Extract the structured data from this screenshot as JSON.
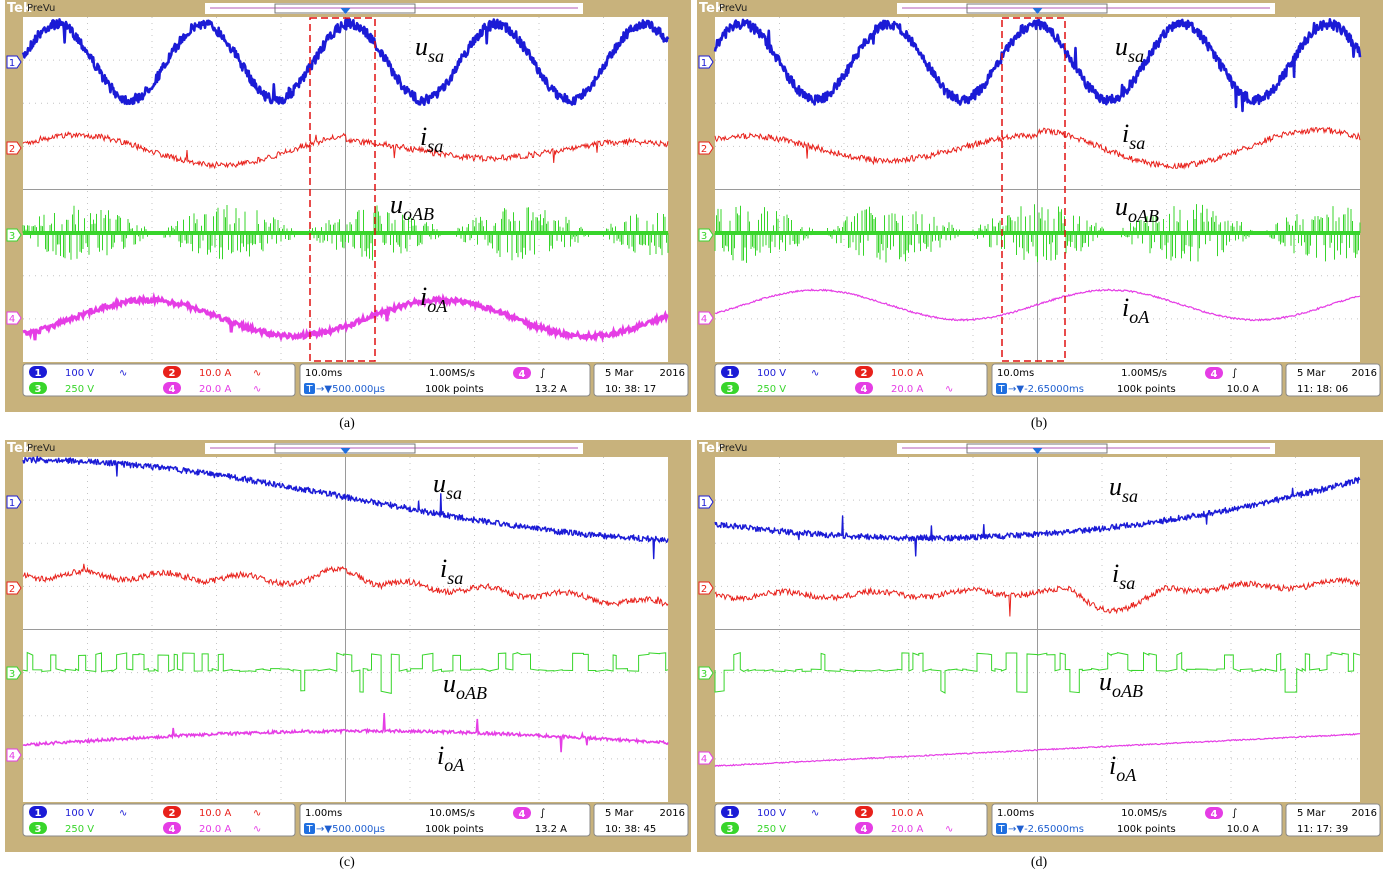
{
  "figure": {
    "panels": [
      {
        "caption": "(a)",
        "logo": "Tek",
        "mode": "PreVu",
        "channel_markers": [
          "1",
          "2",
          "3",
          "4"
        ],
        "trace_labels": [
          {
            "symbol": "u",
            "subscript": "sa"
          },
          {
            "symbol": "i",
            "subscript": "sa"
          },
          {
            "symbol": "u",
            "subscript": "oAB"
          },
          {
            "symbol": "i",
            "subscript": "oA"
          }
        ],
        "status": {
          "ch1": {
            "badge": "1",
            "scale": "100 V",
            "coupling": "∿"
          },
          "ch2": {
            "badge": "2",
            "scale": "10.0 A",
            "coupling": "∿"
          },
          "ch3": {
            "badge": "3",
            "scale": "250 V"
          },
          "ch4": {
            "badge": "4",
            "scale": "20.0 A",
            "coupling": "∿"
          },
          "timebase": "10.0ms",
          "sample_rate": "1.00MS/s",
          "trigger_icon": "T",
          "position": "→▼500.000µs",
          "record": "100k points",
          "trigger_channel": "4",
          "trigger_slope": "∫",
          "trigger_level": "13.2 A",
          "date": "5 Mar",
          "year": "2016",
          "time": "10: 38: 17"
        }
      },
      {
        "caption": "(b)",
        "logo": "Tek",
        "mode": "PreVu",
        "channel_markers": [
          "1",
          "2",
          "3",
          "4"
        ],
        "trace_labels": [
          {
            "symbol": "u",
            "subscript": "sa"
          },
          {
            "symbol": "i",
            "subscript": "sa"
          },
          {
            "symbol": "u",
            "subscript": "oAB"
          },
          {
            "symbol": "i",
            "subscript": "oA"
          }
        ],
        "status": {
          "ch1": {
            "badge": "1",
            "scale": "100 V",
            "coupling": "∿"
          },
          "ch2": {
            "badge": "2",
            "scale": "10.0 A"
          },
          "ch3": {
            "badge": "3",
            "scale": "250 V"
          },
          "ch4": {
            "badge": "4",
            "scale": "20.0 A",
            "coupling": "∿"
          },
          "timebase": "10.0ms",
          "sample_rate": "1.00MS/s",
          "trigger_icon": "T",
          "position": "→▼-2.65000ms",
          "record": "100k points",
          "trigger_channel": "4",
          "trigger_slope": "∫",
          "trigger_level": "10.0 A",
          "date": "5 Mar",
          "year": "2016",
          "time": "11: 18: 06"
        }
      },
      {
        "caption": "(c)",
        "logo": "Tek",
        "mode": "PreVu",
        "channel_markers": [
          "1",
          "2",
          "3",
          "4"
        ],
        "trace_labels": [
          {
            "symbol": "u",
            "subscript": "sa"
          },
          {
            "symbol": "i",
            "subscript": "sa"
          },
          {
            "symbol": "u",
            "subscript": "oAB"
          },
          {
            "symbol": "i",
            "subscript": "oA"
          }
        ],
        "status": {
          "ch1": {
            "badge": "1",
            "scale": "100 V",
            "coupling": "∿"
          },
          "ch2": {
            "badge": "2",
            "scale": "10.0 A",
            "coupling": "∿"
          },
          "ch3": {
            "badge": "3",
            "scale": "250 V"
          },
          "ch4": {
            "badge": "4",
            "scale": "20.0 A",
            "coupling": "∿"
          },
          "timebase": "1.00ms",
          "sample_rate": "10.0MS/s",
          "trigger_icon": "T",
          "position": "→▼500.000µs",
          "record": "100k points",
          "trigger_channel": "4",
          "trigger_slope": "∫",
          "trigger_level": "13.2 A",
          "date": "5 Mar",
          "year": "2016",
          "time": "10: 38: 45"
        }
      },
      {
        "caption": "(d)",
        "logo": "Tek",
        "mode": "PreVu",
        "channel_markers": [
          "1",
          "2",
          "3",
          "4"
        ],
        "trace_labels": [
          {
            "symbol": "u",
            "subscript": "sa"
          },
          {
            "symbol": "i",
            "subscript": "sa"
          },
          {
            "symbol": "u",
            "subscript": "oAB"
          },
          {
            "symbol": "i",
            "subscript": "oA"
          }
        ],
        "status": {
          "ch1": {
            "badge": "1",
            "scale": "100 V",
            "coupling": "∿"
          },
          "ch2": {
            "badge": "2",
            "scale": "10.0 A"
          },
          "ch3": {
            "badge": "3",
            "scale": "250 V"
          },
          "ch4": {
            "badge": "4",
            "scale": "20.0 A",
            "coupling": "∿"
          },
          "timebase": "1.00ms",
          "sample_rate": "10.0MS/s",
          "trigger_icon": "T",
          "position": "→▼-2.65000ms",
          "record": "100k points",
          "trigger_channel": "4",
          "trigger_slope": "∫",
          "trigger_level": "10.0 A",
          "date": "5 Mar",
          "year": "2016",
          "time": "11: 17: 39"
        }
      }
    ]
  }
}
